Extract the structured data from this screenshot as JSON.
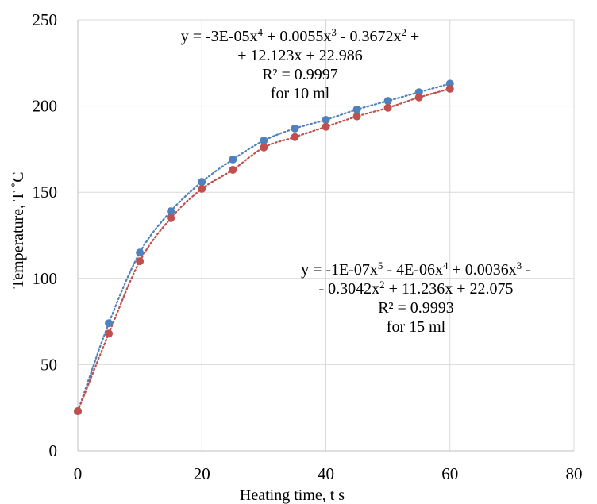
{
  "chart_data": {
    "type": "scatter",
    "xlabel": "Heating time, t  s",
    "ylabel": "Temperature, T ˚C",
    "xlim": [
      0,
      80
    ],
    "ylim": [
      0,
      250
    ],
    "x_ticks": [
      0,
      20,
      40,
      60,
      80
    ],
    "y_ticks": [
      0,
      50,
      100,
      150,
      200,
      250
    ],
    "grid": "vertical-and-horizontal",
    "legend": "none",
    "series": [
      {
        "color": "#4F81BD",
        "trendline": "polynomial order 4, dotted",
        "x": [
          0,
          5,
          10,
          15,
          20,
          25,
          30,
          35,
          40,
          45,
          50,
          55,
          60
        ],
        "y": [
          23,
          74,
          115,
          139,
          156,
          169,
          180,
          187,
          192,
          198,
          203,
          208,
          213
        ]
      },
      {
        "color": "#C0504D",
        "trendline": "polynomial order 5, dotted",
        "x": [
          0,
          5,
          10,
          15,
          20,
          25,
          30,
          35,
          40,
          45,
          50,
          55,
          60
        ],
        "y": [
          23,
          68,
          110,
          135,
          152,
          163,
          176,
          182,
          188,
          194,
          199,
          205,
          210
        ]
      }
    ],
    "annotations": [
      {
        "line1": {
          "a": "y = -3E-05x",
          "a_sup": "4",
          "b": " + 0.0055x",
          "b_sup": "3",
          "c": " - 0.3672x",
          "c_sup": "2",
          "d": " +"
        },
        "line2": "+ 12.123x + 22.986",
        "r2": "R² = 0.9997",
        "label": "for 10 ml"
      },
      {
        "line1": {
          "a": "y = -1E-07x",
          "a_sup": "5",
          "b": " - 4E-06x",
          "b_sup": "4",
          "c": " + 0.0036x",
          "c_sup": "3",
          "d": " -"
        },
        "line2": {
          "a": "- 0.3042x",
          "a_sup": "2",
          "b": " + 11.236x + 22.075"
        },
        "r2": "R² = 0.9993",
        "label": "for 15 ml"
      }
    ]
  }
}
